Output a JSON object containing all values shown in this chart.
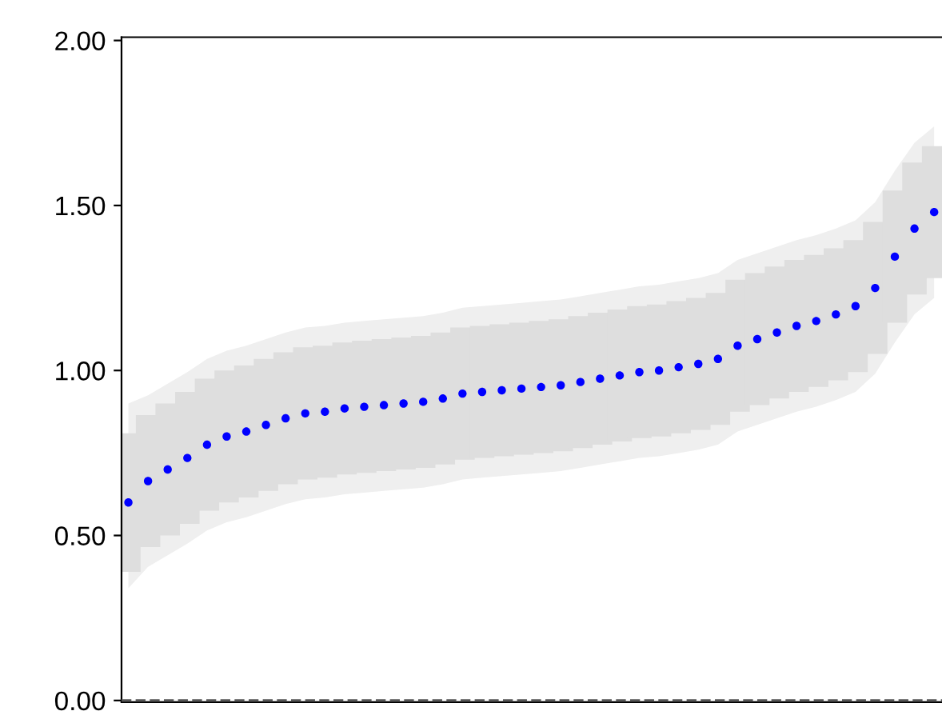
{
  "chart_data": {
    "type": "scatter",
    "categories": [
      null,
      null,
      null,
      null,
      null,
      null,
      null,
      null,
      null,
      null,
      null,
      null,
      null,
      null,
      null,
      null,
      null,
      null,
      null,
      null,
      null,
      null,
      null,
      null,
      null,
      null,
      null,
      null,
      null,
      null,
      null,
      null,
      null,
      null,
      null,
      null,
      null,
      null,
      null,
      null,
      null,
      null
    ],
    "series": [
      {
        "color": "#0000ff",
        "marker": "circle",
        "values": [
          0.6,
          0.665,
          0.7,
          0.735,
          0.775,
          0.8,
          0.815,
          0.835,
          0.855,
          0.87,
          0.875,
          0.885,
          0.89,
          0.895,
          0.9,
          0.905,
          0.915,
          0.93,
          0.935,
          0.94,
          0.945,
          0.95,
          0.955,
          0.965,
          0.975,
          0.985,
          0.995,
          1.0,
          1.01,
          1.02,
          1.035,
          1.075,
          1.095,
          1.115,
          1.135,
          1.15,
          1.17,
          1.195,
          1.25,
          1.345,
          1.43,
          1.48
        ],
        "errors": [
          0.21,
          0.2,
          0.2,
          0.2,
          0.2,
          0.2,
          0.2,
          0.2,
          0.2,
          0.2,
          0.2,
          0.2,
          0.2,
          0.2,
          0.2,
          0.2,
          0.2,
          0.2,
          0.2,
          0.2,
          0.2,
          0.2,
          0.2,
          0.2,
          0.2,
          0.2,
          0.2,
          0.2,
          0.2,
          0.2,
          0.2,
          0.2,
          0.2,
          0.2,
          0.2,
          0.2,
          0.2,
          0.2,
          0.2,
          0.2,
          0.2,
          0.2
        ],
        "upper": [
          0.9,
          0.925,
          0.96,
          0.995,
          1.035,
          1.06,
          1.075,
          1.095,
          1.115,
          1.13,
          1.135,
          1.145,
          1.15,
          1.155,
          1.16,
          1.165,
          1.175,
          1.19,
          1.195,
          1.2,
          1.205,
          1.21,
          1.215,
          1.225,
          1.235,
          1.245,
          1.255,
          1.26,
          1.27,
          1.28,
          1.295,
          1.335,
          1.355,
          1.375,
          1.395,
          1.41,
          1.43,
          1.455,
          1.51,
          1.605,
          1.69,
          1.74
        ],
        "lower": [
          0.34,
          0.405,
          0.44,
          0.475,
          0.515,
          0.54,
          0.555,
          0.575,
          0.595,
          0.61,
          0.615,
          0.625,
          0.63,
          0.635,
          0.64,
          0.645,
          0.655,
          0.67,
          0.675,
          0.68,
          0.685,
          0.69,
          0.695,
          0.705,
          0.715,
          0.725,
          0.735,
          0.74,
          0.75,
          0.76,
          0.775,
          0.815,
          0.835,
          0.855,
          0.875,
          0.89,
          0.91,
          0.935,
          0.99,
          1.085,
          1.17,
          1.22
        ]
      }
    ],
    "ylim": [
      -0.005,
      2.01
    ],
    "yticks": [
      {
        "value": 0,
        "label": "0.00"
      },
      {
        "value": 0.5,
        "label": "0.50"
      },
      {
        "value": 1,
        "label": "1.00"
      },
      {
        "value": 1.5,
        "label": "1.50"
      },
      {
        "value": 2,
        "label": "2.00"
      }
    ],
    "ref_lines": [
      {
        "axis": "y",
        "value": 0,
        "color": "#555555",
        "line_style": "dashed"
      }
    ],
    "tick_labels": "y",
    "grid": false
  }
}
